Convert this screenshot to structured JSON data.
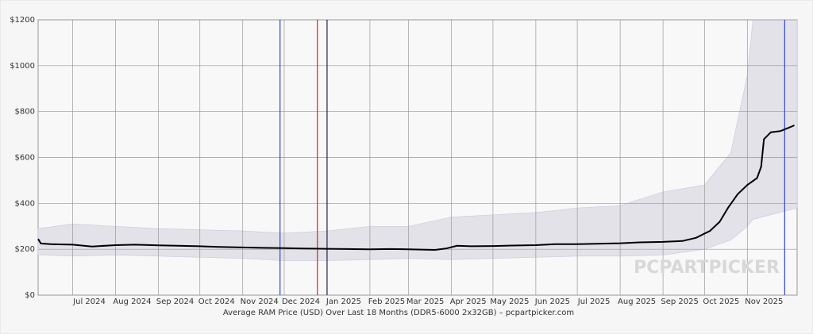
{
  "chart_data": {
    "type": "line",
    "title": "Average RAM Price (USD) Over Last 18 Months (DDR5-6000 2x32GB) – pcpartpicker.com",
    "watermark": "PCPARTPICKER",
    "xlim": [
      "2024-06-06",
      "2025-12-07"
    ],
    "xticks": [
      {
        "value": "2024-07-01",
        "label": "Jul 2024"
      },
      {
        "value": "2024-08-01",
        "label": "Aug 2024"
      },
      {
        "value": "2024-09-01",
        "label": "Sep 2024"
      },
      {
        "value": "2024-10-01",
        "label": "Oct 2024"
      },
      {
        "value": "2024-11-01",
        "label": "Nov 2024"
      },
      {
        "value": "2024-12-01",
        "label": "Dec 2024"
      },
      {
        "value": "2025-01-01",
        "label": "Jan 2025"
      },
      {
        "value": "2025-02-01",
        "label": "Feb 2025"
      },
      {
        "value": "2025-03-01",
        "label": "Mar 2025"
      },
      {
        "value": "2025-04-01",
        "label": "Apr 2025"
      },
      {
        "value": "2025-05-01",
        "label": "May 2025"
      },
      {
        "value": "2025-06-01",
        "label": "Jun 2025"
      },
      {
        "value": "2025-07-01",
        "label": "Jul 2025"
      },
      {
        "value": "2025-08-01",
        "label": "Aug 2025"
      },
      {
        "value": "2025-09-01",
        "label": "Sep 2025"
      },
      {
        "value": "2025-10-01",
        "label": "Oct 2025"
      },
      {
        "value": "2025-11-01",
        "label": "Nov 2025"
      }
    ],
    "ylim": [
      0,
      1200
    ],
    "yticks": [
      {
        "value": 0,
        "label": "$0"
      },
      {
        "value": 200,
        "label": "$200"
      },
      {
        "value": 400,
        "label": "$400"
      },
      {
        "value": 600,
        "label": "$600"
      },
      {
        "value": 800,
        "label": "$800"
      },
      {
        "value": 1000,
        "label": "$1000"
      },
      {
        "value": 1200,
        "label": "$1200"
      }
    ],
    "grid": true,
    "markers": [
      {
        "x": "2024-11-28",
        "color": "#3344cc"
      },
      {
        "x": "2024-12-25",
        "color": "#dd2222"
      },
      {
        "x": "2025-01-01",
        "color": "#222244"
      },
      {
        "x": "2025-11-28",
        "color": "#3344cc"
      }
    ],
    "band": {
      "color": "#e2e2e8",
      "x": [
        "2024-06-06",
        "2024-07-01",
        "2024-08-01",
        "2024-09-01",
        "2024-10-01",
        "2024-11-01",
        "2024-12-01",
        "2025-01-01",
        "2025-02-01",
        "2025-03-01",
        "2025-04-01",
        "2025-05-01",
        "2025-06-01",
        "2025-07-01",
        "2025-08-01",
        "2025-09-01",
        "2025-10-01",
        "2025-10-20",
        "2025-11-01",
        "2025-11-05",
        "2025-12-07"
      ],
      "low": [
        175,
        170,
        175,
        170,
        165,
        160,
        150,
        150,
        155,
        160,
        155,
        160,
        165,
        170,
        170,
        175,
        200,
        240,
        300,
        330,
        380
      ],
      "high": [
        290,
        310,
        300,
        290,
        285,
        280,
        270,
        280,
        300,
        300,
        340,
        350,
        360,
        380,
        390,
        450,
        480,
        620,
        960,
        1200,
        1200
      ]
    },
    "series": [
      {
        "color": "#000000",
        "x": [
          "2024-06-06",
          "2024-06-08",
          "2024-06-15",
          "2024-07-01",
          "2024-07-15",
          "2024-08-01",
          "2024-08-15",
          "2024-09-01",
          "2024-09-15",
          "2024-10-01",
          "2024-10-15",
          "2024-11-01",
          "2024-11-15",
          "2024-12-01",
          "2024-12-15",
          "2025-01-01",
          "2025-01-15",
          "2025-02-01",
          "2025-02-15",
          "2025-03-01",
          "2025-03-20",
          "2025-03-28",
          "2025-04-05",
          "2025-04-15",
          "2025-05-01",
          "2025-05-15",
          "2025-06-01",
          "2025-06-15",
          "2025-07-01",
          "2025-07-15",
          "2025-08-01",
          "2025-08-15",
          "2025-09-01",
          "2025-09-15",
          "2025-09-25",
          "2025-10-05",
          "2025-10-12",
          "2025-10-18",
          "2025-10-25",
          "2025-11-01",
          "2025-11-08",
          "2025-11-11",
          "2025-11-13",
          "2025-11-18",
          "2025-11-25",
          "2025-12-01",
          "2025-12-05"
        ],
        "values": [
          245,
          225,
          222,
          220,
          212,
          218,
          220,
          217,
          215,
          213,
          210,
          208,
          206,
          205,
          203,
          202,
          201,
          200,
          201,
          200,
          197,
          203,
          215,
          213,
          214,
          216,
          218,
          222,
          222,
          224,
          226,
          230,
          232,
          236,
          250,
          280,
          320,
          380,
          440,
          480,
          510,
          560,
          680,
          710,
          715,
          730,
          740
        ]
      }
    ]
  }
}
